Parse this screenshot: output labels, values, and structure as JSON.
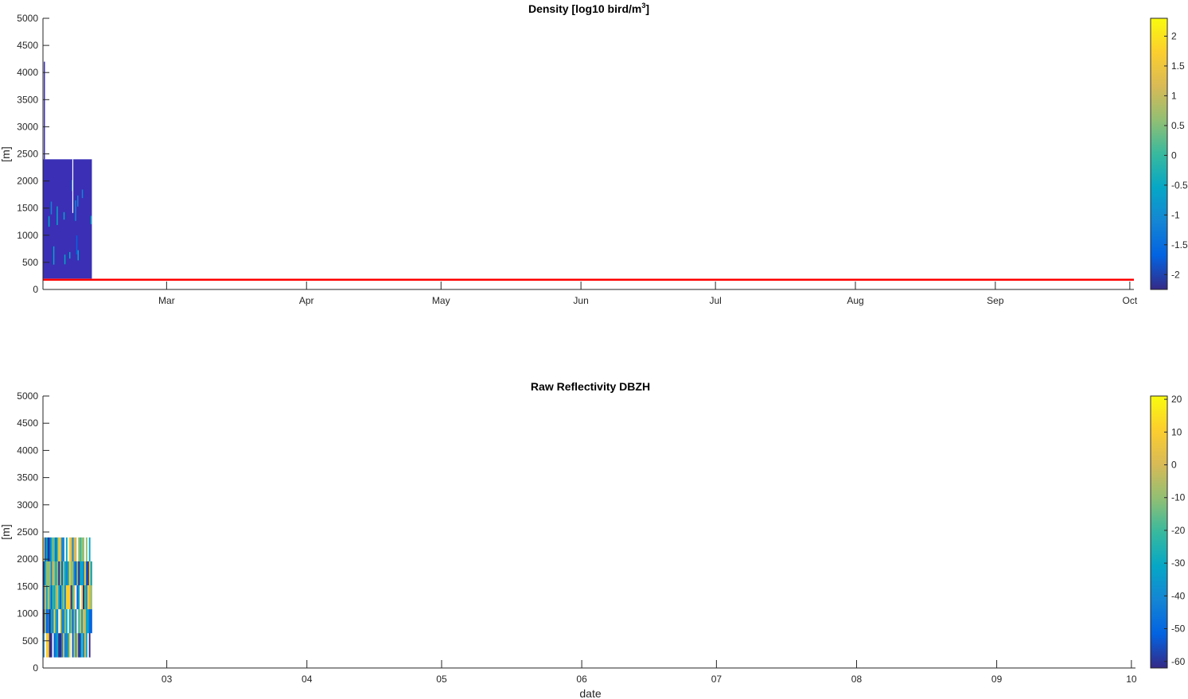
{
  "chart_data": [
    {
      "type": "heatmap",
      "title": "Density [log10 bird/m",
      "title_superscript": "3",
      "title_suffix": "]",
      "ylabel": "[m]",
      "xlabel": "",
      "ylim": [
        0,
        5000
      ],
      "yticks": [
        0,
        500,
        1000,
        1500,
        2000,
        2500,
        3000,
        3500,
        4000,
        4500,
        5000
      ],
      "xlim": [
        0,
        8.03
      ],
      "xticks": [
        {
          "pos": 0.91,
          "label": "Mar"
        },
        {
          "pos": 1.94,
          "label": "Apr"
        },
        {
          "pos": 2.93,
          "label": "May"
        },
        {
          "pos": 3.96,
          "label": "Jun"
        },
        {
          "pos": 4.95,
          "label": "Jul"
        },
        {
          "pos": 5.98,
          "label": "Aug"
        },
        {
          "pos": 7.01,
          "label": "Sep"
        },
        {
          "pos": 8.0,
          "label": "Oct"
        }
      ],
      "data_extent": {
        "x": [
          0,
          0.36
        ],
        "y": [
          200,
          2400
        ]
      },
      "data_base_color": "#3a2fb5",
      "reference_line": {
        "y": 180,
        "color": "#ff0000"
      },
      "colorbar": {
        "range": [
          -2.25,
          2.3
        ],
        "ticks": [
          "2",
          "1.5",
          "1",
          "0.5",
          "0",
          "-0.5",
          "-1",
          "-1.5",
          "-2"
        ],
        "tick_values": [
          2,
          1.5,
          1,
          0.5,
          0,
          -0.5,
          -1,
          -1.5,
          -2
        ],
        "colormap": "parula"
      },
      "grid": false
    },
    {
      "type": "heatmap",
      "title": "Raw Reflectivity DBZH",
      "ylabel": "[m]",
      "xlabel": "date",
      "ylim": [
        0,
        5000
      ],
      "yticks": [
        0,
        500,
        1000,
        1500,
        2000,
        2500,
        3000,
        3500,
        4000,
        4500,
        5000
      ],
      "xlim": [
        0,
        8.03
      ],
      "xticks": [
        {
          "pos": 0.91,
          "label": "03"
        },
        {
          "pos": 1.94,
          "label": "04"
        },
        {
          "pos": 2.93,
          "label": "05"
        },
        {
          "pos": 3.96,
          "label": "06"
        },
        {
          "pos": 4.95,
          "label": "07"
        },
        {
          "pos": 5.98,
          "label": "08"
        },
        {
          "pos": 7.01,
          "label": "09"
        },
        {
          "pos": 8.0,
          "label": "10"
        }
      ],
      "data_extent": {
        "x": [
          0,
          0.36
        ],
        "y": [
          200,
          2400
        ]
      },
      "colorbar": {
        "range": [
          -62,
          21
        ],
        "ticks": [
          "20",
          "10",
          "0",
          "-10",
          "-20",
          "-30",
          "-40",
          "-50",
          "-60"
        ],
        "tick_values": [
          20,
          10,
          0,
          -10,
          -20,
          -30,
          -40,
          -50,
          -60
        ],
        "colormap": "parula"
      },
      "grid": false
    }
  ]
}
